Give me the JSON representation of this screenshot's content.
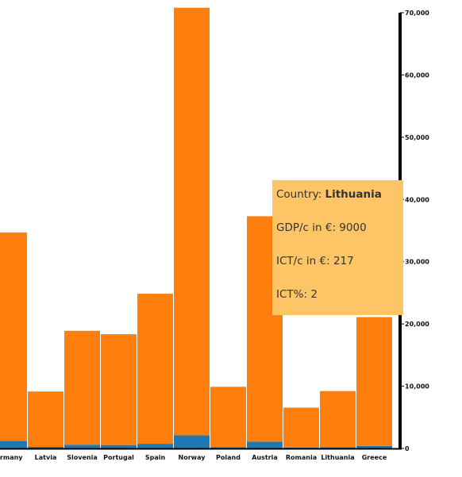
{
  "chart_data": {
    "type": "bar",
    "stacked": true,
    "categories": [
      "Germany",
      "Latvia",
      "Slovenia",
      "Portugal",
      "Spain",
      "Norway",
      "Poland",
      "Austria",
      "Romania",
      "Lithuania",
      "Greece"
    ],
    "category_labels": [
      "ermany",
      "Latvia",
      "Slovenia",
      "Portugal",
      "Spain",
      "Norway",
      "Poland",
      "Austria",
      "Romania",
      "Lithuania",
      "Greece"
    ],
    "series": [
      {
        "values": [
          1200,
          250,
          600,
          550,
          750,
          2100,
          200,
          1100,
          150,
          217,
          400
        ]
      },
      {
        "values": [
          33500,
          8900,
          18300,
          17800,
          24100,
          68700,
          9700,
          36200,
          6400,
          9000,
          20700
        ]
      }
    ],
    "series_colors": [
      "#1f77b4",
      "#ff7f0e"
    ],
    "ylim": [
      0,
      70000
    ],
    "yticks": [
      0,
      10000,
      20000,
      30000,
      40000,
      50000,
      60000,
      70000
    ],
    "ytick_labels": [
      "0",
      "10,000",
      "20,000",
      "30,000",
      "40,000",
      "50,000",
      "60,000",
      "70,000"
    ],
    "y_axis_side": "right",
    "grid": false
  },
  "tooltip": {
    "country_label": "Country: ",
    "country_value": "Lithuania",
    "gdp_label": "GDP/c in €: ",
    "gdp_value": "9000",
    "ict_label": "ICT/c in €: ",
    "ict_value": "217",
    "pct_label": "ICT%: ",
    "pct_value": "2"
  }
}
